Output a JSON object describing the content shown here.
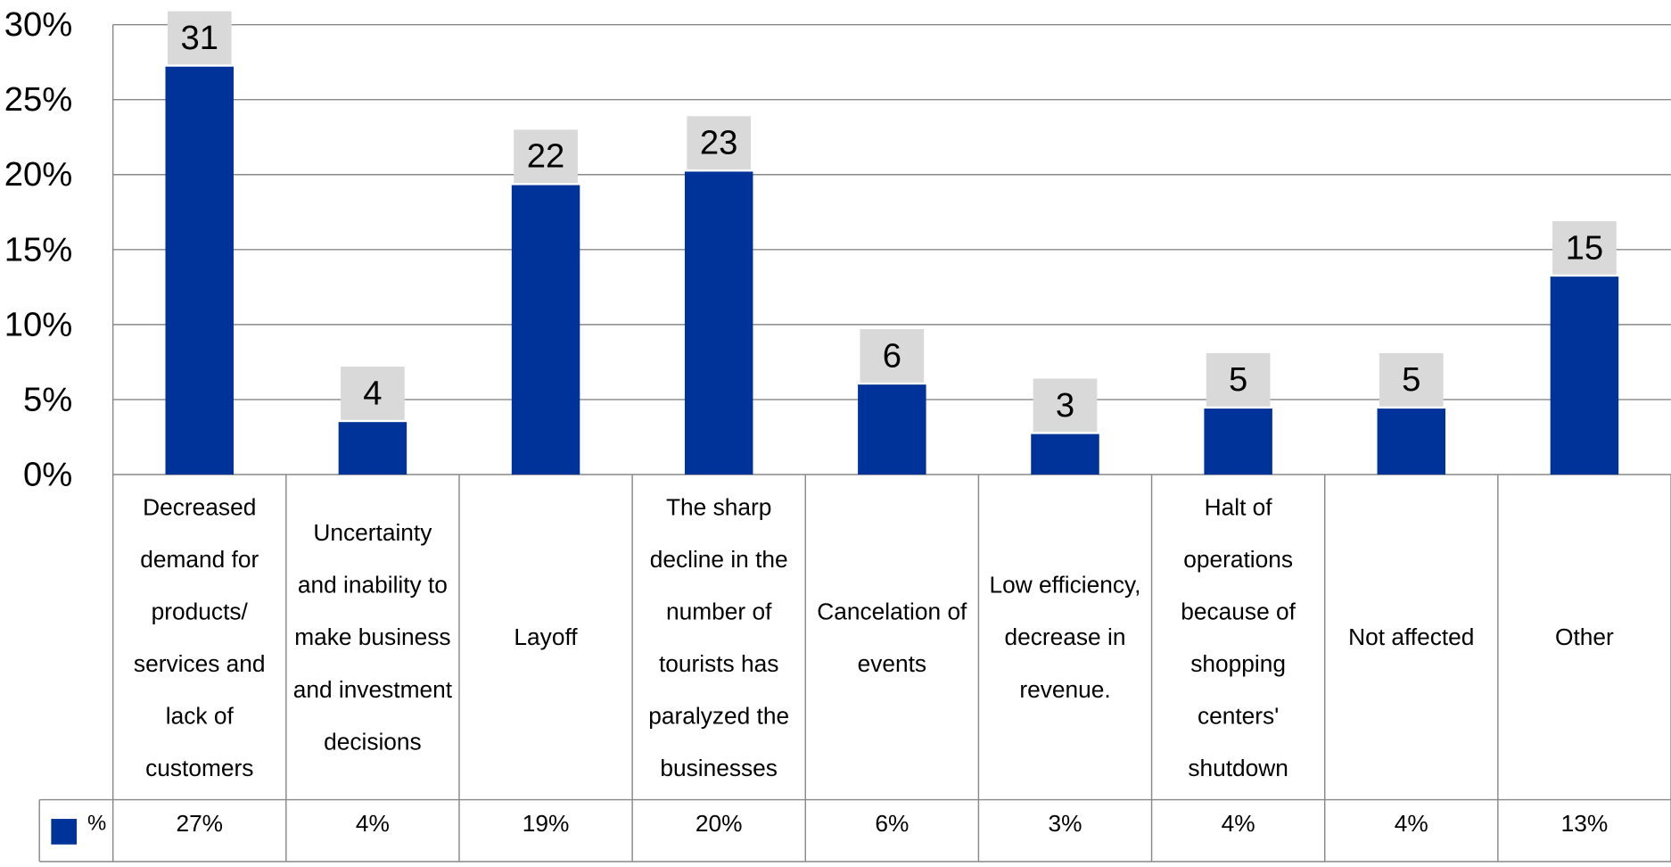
{
  "chart_data": {
    "type": "bar",
    "categories": [
      "Decreased demand for products/ services and lack of customers",
      "Uncertainty and inability to make business and investment decisions",
      "Layoff",
      "The sharp decline in the number of tourists has paralyzed the businesses",
      "Cancelation of events",
      "Low efficiency, decrease in revenue.",
      "Halt of operations because of shopping centers' shutdown",
      "Not affected",
      "Other"
    ],
    "series": [
      {
        "name": "%",
        "color": "#003399",
        "values": [
          27.2,
          3.5,
          19.3,
          20.2,
          6,
          2.7,
          4.4,
          4.4,
          13.2
        ],
        "value_labels": [
          "27%",
          "4%",
          "19%",
          "20%",
          "6%",
          "3%",
          "4%",
          "4%",
          "13%"
        ]
      }
    ],
    "counts": [
      31,
      4,
      22,
      23,
      6,
      3,
      5,
      5,
      15
    ],
    "ylim": [
      0,
      30
    ],
    "yticks": [
      {
        "value": 0,
        "label": "0%"
      },
      {
        "value": 5,
        "label": "5%"
      },
      {
        "value": 10,
        "label": "10%"
      },
      {
        "value": 15,
        "label": "15%"
      },
      {
        "value": 20,
        "label": "20%"
      },
      {
        "value": 25,
        "label": "25%"
      },
      {
        "value": 30,
        "label": "30%"
      }
    ],
    "grid": true
  }
}
